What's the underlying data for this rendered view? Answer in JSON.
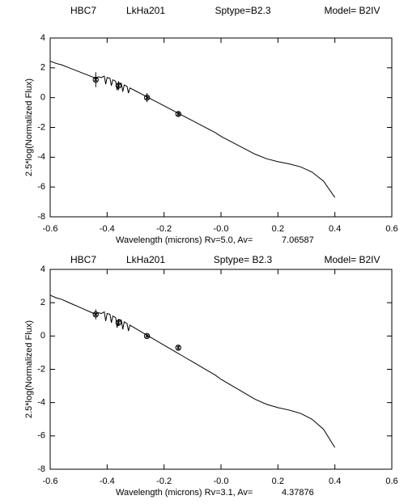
{
  "chart_data": [
    {
      "type": "line",
      "header": [
        "HBC7",
        "LkHa201",
        "Sptype=B2.3",
        "Model= B2IV"
      ],
      "ylabel": "2.5*log(Normalized Flux)",
      "xlabel": "Wavelength (microns) Rv=5.0, Av=",
      "av": "7.06587",
      "xlim": [
        -0.6,
        0.6
      ],
      "ylim": [
        -8,
        4
      ],
      "xticks": [
        -0.6,
        -0.4,
        -0.2,
        {
          "value": 0,
          "label": "-0.0"
        },
        0.2,
        0.4,
        0.6
      ],
      "yticks": [
        -8,
        -6,
        -4,
        -2,
        0,
        2,
        4
      ],
      "color": "#000000",
      "x": [
        -0.6,
        -0.58,
        -0.56,
        -0.54,
        -0.52,
        -0.5,
        -0.48,
        -0.46,
        -0.44,
        -0.43,
        -0.42,
        -0.41,
        -0.405,
        -0.4,
        -0.39,
        -0.385,
        -0.38,
        -0.37,
        -0.365,
        -0.36,
        -0.35,
        -0.345,
        -0.34,
        -0.33,
        -0.325,
        -0.32,
        -0.3,
        -0.28,
        -0.26,
        -0.24,
        -0.22,
        -0.2,
        -0.18,
        -0.16,
        -0.14,
        -0.12,
        -0.1,
        -0.08,
        -0.06,
        -0.04,
        -0.02,
        0.0,
        0.04,
        0.08,
        0.12,
        0.16,
        0.2,
        0.24,
        0.28,
        0.32,
        0.36,
        0.4
      ],
      "values": [
        2.45,
        2.3,
        2.2,
        2.05,
        1.9,
        1.75,
        1.6,
        1.45,
        1.3,
        1.4,
        1.35,
        1.45,
        0.9,
        1.35,
        1.3,
        0.8,
        1.2,
        1.1,
        0.5,
        1.0,
        0.95,
        0.4,
        0.85,
        0.75,
        0.3,
        0.65,
        0.45,
        0.25,
        0.05,
        -0.15,
        -0.35,
        -0.55,
        -0.75,
        -0.95,
        -1.15,
        -1.35,
        -1.55,
        -1.75,
        -1.95,
        -2.15,
        -2.35,
        -2.6,
        -3.0,
        -3.4,
        -3.8,
        -4.1,
        -4.3,
        -4.45,
        -4.65,
        -5.0,
        -5.6,
        -6.7
      ],
      "points": {
        "x": [
          -0.44,
          -0.36,
          -0.26,
          -0.15
        ],
        "values": [
          1.2,
          0.8,
          0.0,
          -1.1
        ],
        "errors": [
          0.5,
          0.3,
          0.3,
          0.2
        ]
      }
    },
    {
      "type": "line",
      "header": [
        "HBC7",
        "LkHa201",
        "Sptype=  B2.3",
        "Model=  B2IV"
      ],
      "ylabel": "2.5*log(Normalized Flux)",
      "xlabel": "Wavelength (microns) Rv=3.1,  Av=",
      "av": "4.37876",
      "xlim": [
        -0.6,
        0.6
      ],
      "ylim": [
        -8,
        4
      ],
      "xticks": [
        -0.6,
        -0.4,
        -0.2,
        {
          "value": 0,
          "label": "-0.0"
        },
        0.2,
        0.4,
        0.6
      ],
      "yticks": [
        -8,
        -6,
        -4,
        -2,
        0,
        2,
        4
      ],
      "color": "#000000",
      "x": [
        -0.6,
        -0.58,
        -0.56,
        -0.54,
        -0.52,
        -0.5,
        -0.48,
        -0.46,
        -0.44,
        -0.43,
        -0.42,
        -0.41,
        -0.405,
        -0.4,
        -0.39,
        -0.385,
        -0.38,
        -0.37,
        -0.365,
        -0.36,
        -0.35,
        -0.345,
        -0.34,
        -0.33,
        -0.325,
        -0.32,
        -0.3,
        -0.28,
        -0.26,
        -0.24,
        -0.22,
        -0.2,
        -0.18,
        -0.16,
        -0.14,
        -0.12,
        -0.1,
        -0.08,
        -0.06,
        -0.04,
        -0.02,
        0.0,
        0.04,
        0.08,
        0.12,
        0.16,
        0.2,
        0.24,
        0.28,
        0.32,
        0.36,
        0.4
      ],
      "values": [
        2.45,
        2.3,
        2.2,
        2.05,
        1.9,
        1.75,
        1.6,
        1.45,
        1.3,
        1.4,
        1.35,
        1.45,
        0.9,
        1.35,
        1.3,
        0.8,
        1.2,
        1.1,
        0.5,
        1.0,
        0.95,
        0.4,
        0.85,
        0.75,
        0.3,
        0.65,
        0.45,
        0.25,
        0.05,
        -0.15,
        -0.35,
        -0.55,
        -0.75,
        -0.95,
        -1.15,
        -1.35,
        -1.55,
        -1.75,
        -1.95,
        -2.15,
        -2.35,
        -2.6,
        -3.0,
        -3.4,
        -3.8,
        -4.1,
        -4.3,
        -4.45,
        -4.65,
        -5.0,
        -5.6,
        -6.7
      ],
      "points": {
        "x": [
          -0.44,
          -0.36,
          -0.26,
          -0.15
        ],
        "values": [
          1.3,
          0.8,
          0.0,
          -0.7
        ],
        "errors": [
          0.3,
          0.2,
          0.1,
          0.15
        ]
      }
    }
  ]
}
